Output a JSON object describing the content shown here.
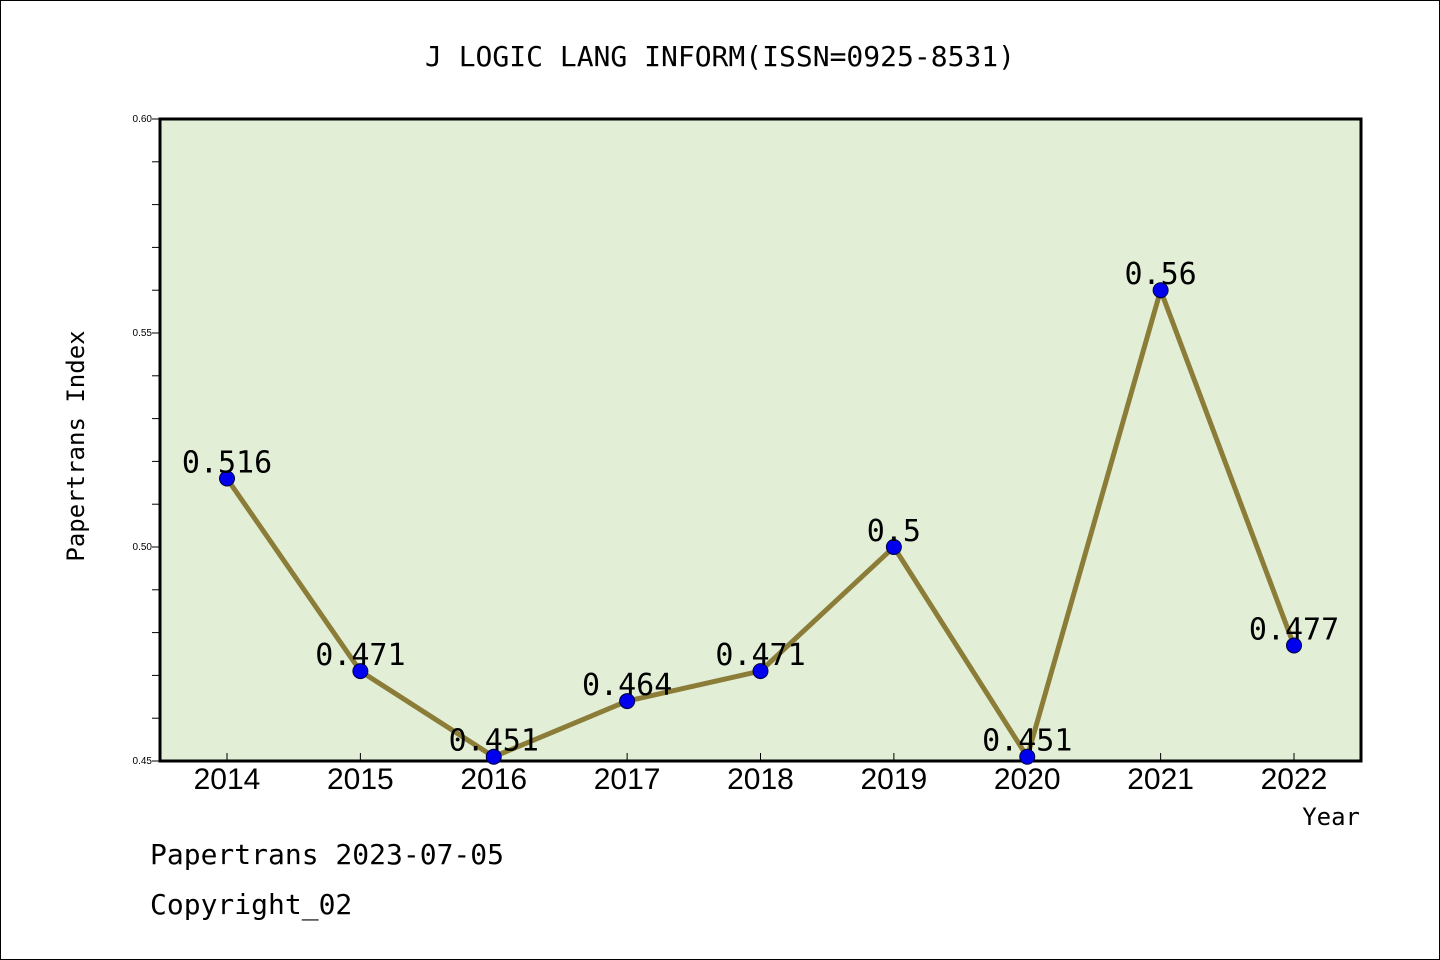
{
  "chart_data": {
    "type": "line",
    "title": "J LOGIC LANG INFORM(ISSN=0925-8531)",
    "xlabel": "Year",
    "ylabel": "Papertrans Index",
    "categories": [
      "2014",
      "2015",
      "2016",
      "2017",
      "2018",
      "2019",
      "2020",
      "2021",
      "2022"
    ],
    "values": [
      0.516,
      0.471,
      0.451,
      0.464,
      0.471,
      0.5,
      0.451,
      0.56,
      0.477
    ],
    "data_labels": [
      "0.516",
      "0.471",
      "0.451",
      "0.464",
      "0.471",
      "0.5",
      "0.451",
      "0.56",
      "0.477"
    ],
    "ylim": [
      0.45,
      0.6
    ],
    "y_ticks": [
      "0.45",
      "0.50",
      "0.55",
      "0.60"
    ],
    "grid": false,
    "colors": {
      "plot_background": "#e2efd6",
      "line": "#8b7d38",
      "marker": "#0000ee"
    }
  },
  "footer": {
    "source": "Papertrans 2023-07-05",
    "copyright": "Copyright_02"
  }
}
